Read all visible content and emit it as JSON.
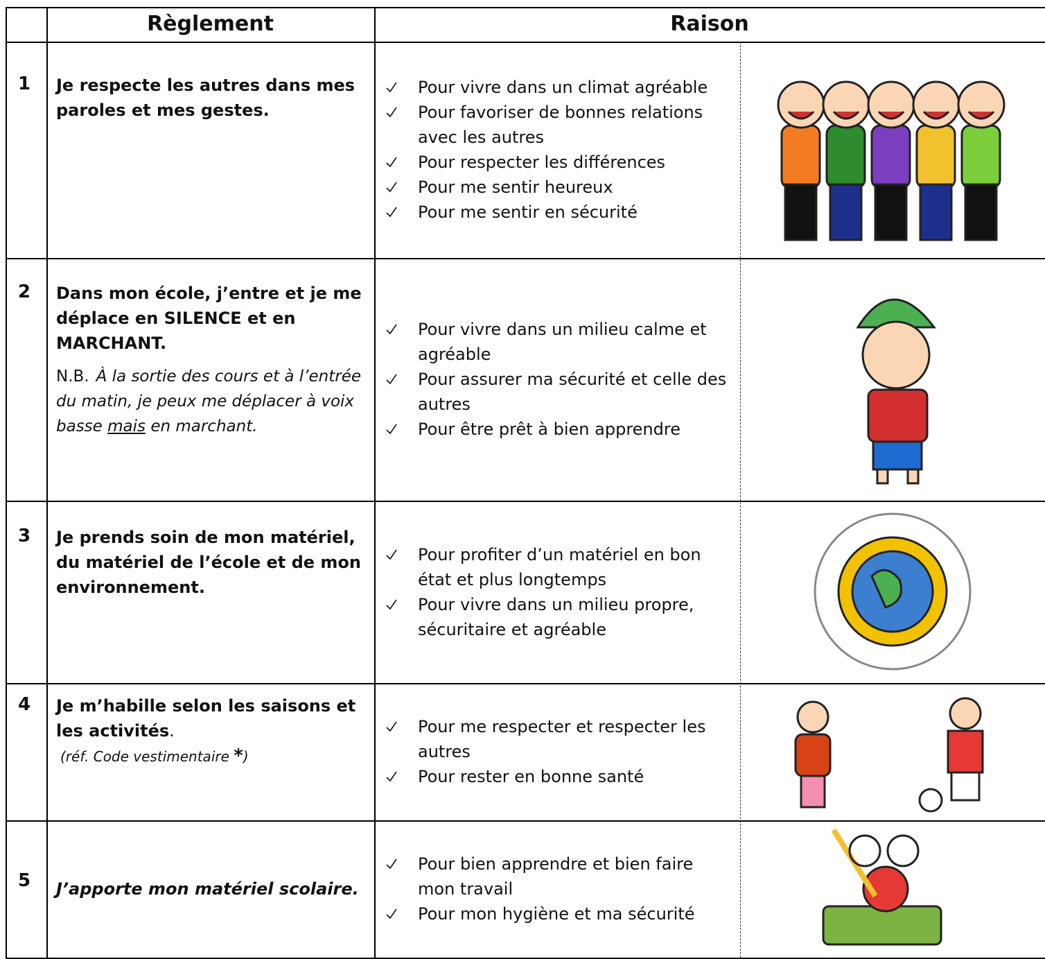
{
  "header": {
    "rule": "Règlement",
    "reason": "Raison"
  },
  "rows": [
    {
      "number": "1",
      "rule": "Je respecte les autres dans mes paroles et mes gestes.",
      "reasons": [
        "Pour vivre dans un climat agréable",
        "Pour favoriser de bonnes relations avec les autres",
        "Pour respecter les différences",
        "Pour me sentir heureux",
        "Pour me sentir en sécurité"
      ]
    },
    {
      "number": "2",
      "rule": "Dans mon école,  j’entre et je me déplace en SILENCE et en MARCHANT.",
      "note": {
        "label": "N.B.",
        "text": "À la sortie des cours et à l’entrée du matin,  je peux me déplacer à voix basse",
        "emphasis": "mais",
        "end": "en marchant."
      },
      "reasons": [
        "Pour vivre dans un milieu calme et agréable",
        "Pour assurer ma sécurité et celle des autres",
        "Pour être prêt à bien apprendre"
      ]
    },
    {
      "number": "3",
      "rule": "Je prends soin de mon matériel, du matériel de l’école et de mon environnement.",
      "reasons": [
        "Pour profiter d’un matériel en bon état et plus longtemps",
        "Pour vivre dans un milieu propre, sécuritaire et agréable"
      ]
    },
    {
      "number": "4",
      "rule": "Je m’habille selon les saisons et les activités",
      "rule_end": ".",
      "note": {
        "text": "(réf. Code vestimentaire",
        "star": "*",
        "end": ")"
      },
      "reasons": [
        "Pour me respecter et respecter les autres",
        "Pour rester en bonne santé"
      ]
    },
    {
      "number": "5",
      "rule": "J’apporte mon matériel scolaire.",
      "italic": true,
      "reasons": [
        "Pour bien apprendre et bien faire mon travail",
        "Pour mon hygiène et ma sécurité"
      ]
    }
  ]
}
